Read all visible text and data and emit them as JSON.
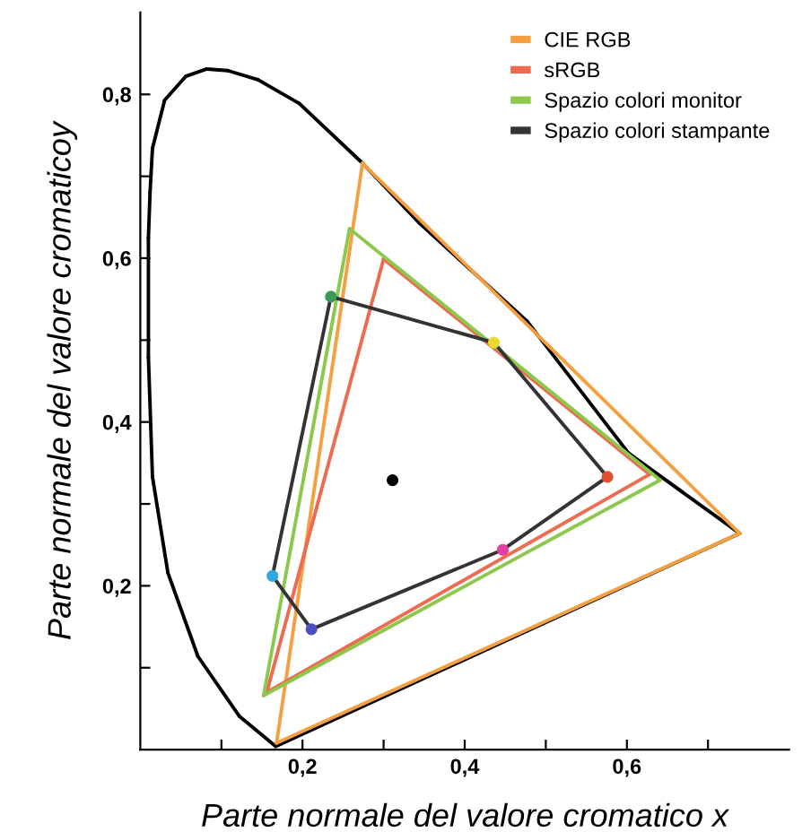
{
  "chart_data": {
    "type": "line",
    "xlabel": "Parte normale del valore cromatico x",
    "ylabel": "Parte normale del valore cromaticoy",
    "xlim": [
      0,
      0.8
    ],
    "ylim": [
      0,
      0.9
    ],
    "xticks": [
      {
        "value": 0.1,
        "label": null
      },
      {
        "value": 0.2,
        "label": "0,2"
      },
      {
        "value": 0.3,
        "label": null
      },
      {
        "value": 0.4,
        "label": "0,4"
      },
      {
        "value": 0.5,
        "label": null
      },
      {
        "value": 0.6,
        "label": "0,6"
      },
      {
        "value": 0.7,
        "label": null
      }
    ],
    "yticks": [
      {
        "value": 0.1,
        "label": null
      },
      {
        "value": 0.2,
        "label": "0,2"
      },
      {
        "value": 0.3,
        "label": null
      },
      {
        "value": 0.4,
        "label": "0,4"
      },
      {
        "value": 0.5,
        "label": null
      },
      {
        "value": 0.6,
        "label": "0,6"
      },
      {
        "value": 0.7,
        "label": null
      },
      {
        "value": 0.8,
        "label": "0,8"
      }
    ],
    "grid": false,
    "legend": "top right",
    "marker": "none",
    "line_style": "solid",
    "series": [
      {
        "type": "line",
        "color": "#000000",
        "x": [
          0.167,
          0.122,
          0.071,
          0.034,
          0.015,
          0.01,
          0.01,
          0.012,
          0.015,
          0.03,
          0.056,
          0.082,
          0.108,
          0.145,
          0.196,
          0.274,
          0.344,
          0.477,
          0.602,
          0.739,
          0.167
        ],
        "values": [
          0.004,
          0.041,
          0.114,
          0.216,
          0.333,
          0.479,
          0.625,
          0.68,
          0.734,
          0.793,
          0.822,
          0.831,
          0.829,
          0.818,
          0.789,
          0.716,
          0.643,
          0.523,
          0.362,
          0.264,
          0.004
        ]
      },
      {
        "type": "line",
        "name": "CIE RGB",
        "color": "#f5a040",
        "x": [
          0.274,
          0.739,
          0.168,
          0.274
        ],
        "values": [
          0.716,
          0.264,
          0.008,
          0.716
        ]
      },
      {
        "type": "line",
        "name": "sRGB",
        "color": "#ee6a50",
        "x": [
          0.3,
          0.628,
          0.156,
          0.3
        ],
        "values": [
          0.599,
          0.336,
          0.07,
          0.599
        ]
      },
      {
        "type": "line",
        "name": "Spazio colori monitor",
        "color": "#8cc84b",
        "x": [
          0.258,
          0.641,
          0.152,
          0.258
        ],
        "values": [
          0.636,
          0.329,
          0.066,
          0.636
        ]
      },
      {
        "type": "line",
        "name": "Spazio colori stampante",
        "color": "#333333",
        "x": [
          0.235,
          0.436,
          0.576,
          0.447,
          0.211,
          0.163,
          0.235
        ],
        "values": [
          0.553,
          0.497,
          0.333,
          0.244,
          0.147,
          0.212,
          0.553
        ]
      },
      {
        "type": "scatter",
        "marker": "circle",
        "x": [
          0.235,
          0.436,
          0.576,
          0.447,
          0.211,
          0.163
        ],
        "values": [
          0.553,
          0.497,
          0.333,
          0.244,
          0.147,
          0.212
        ],
        "colors": [
          "#3a9a5a",
          "#e8d830",
          "#e05030",
          "#e040a0",
          "#4a50c0",
          "#30a8e0"
        ]
      },
      {
        "type": "scatter",
        "marker": "circle",
        "color": "#000000",
        "x": [
          0.311
        ],
        "values": [
          0.329
        ]
      }
    ]
  }
}
